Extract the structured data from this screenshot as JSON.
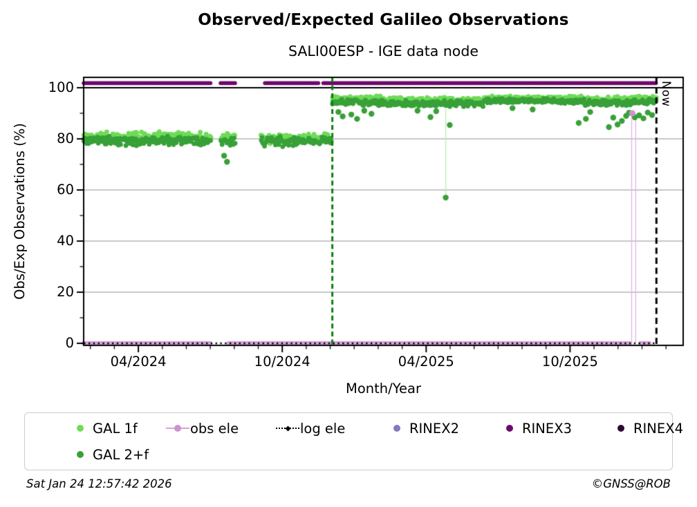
{
  "chart_data": {
    "type": "scatter",
    "title": "Observed/Expected Galileo Observations",
    "subtitle": "SALI00ESP - IGE data node",
    "xlabel": "Month/Year",
    "ylabel": "Obs/Exp Observations (%)",
    "xlim": [
      2024.06,
      2026.143
    ],
    "ylim": [
      -0.81,
      104.05
    ],
    "x_major_ticks": [
      {
        "value": 2024.25,
        "label": "04/2024"
      },
      {
        "value": 2024.75,
        "label": "10/2024"
      },
      {
        "value": 2025.25,
        "label": "04/2025"
      },
      {
        "value": 2025.75,
        "label": "10/2025"
      }
    ],
    "x_minor_tick_step_months": 1,
    "y_major_ticks": [
      {
        "value": 0,
        "label": "0"
      },
      {
        "value": 20,
        "label": "20"
      },
      {
        "value": 40,
        "label": "40"
      },
      {
        "value": 60,
        "label": "60"
      },
      {
        "value": 80,
        "label": "80"
      },
      {
        "value": 100,
        "label": "100"
      }
    ],
    "y_minor_ticks": [
      10,
      30,
      50,
      70,
      90
    ],
    "grid_y_values": [
      20,
      40,
      60,
      80
    ],
    "grid_color": "#b4b4b4",
    "hline_100": {
      "value": 100,
      "color": "#000000"
    },
    "event_line": {
      "x": 2024.924,
      "color": "#0f7d0f",
      "style": "dashed"
    },
    "now_line": {
      "x": 2026.05,
      "label": "Now",
      "color": "#000000",
      "style": "dashed"
    },
    "series": [
      {
        "name": "GAL 1f",
        "color": "#6fdb58",
        "marker_radius": 3.4,
        "bands": [
          {
            "x_start": 2024.0604,
            "x_end": 2024.504,
            "base": 80.8,
            "jitter": 2.2
          },
          {
            "x_start": 2024.536,
            "x_end": 2024.586,
            "base": 80.4,
            "jitter": 1.8
          },
          {
            "x_start": 2024.677,
            "x_end": 2024.921,
            "base": 80.2,
            "jitter": 2.2
          },
          {
            "x_start": 2024.924,
            "x_end": 2025.1,
            "base": 95.7,
            "jitter": 1.2
          },
          {
            "x_start": 2025.1,
            "x_end": 2025.45,
            "base": 95.2,
            "jitter": 1.2
          },
          {
            "x_start": 2025.45,
            "x_end": 2025.8,
            "base": 96.0,
            "jitter": 1.0
          },
          {
            "x_start": 2025.8,
            "x_end": 2025.97,
            "base": 95.4,
            "jitter": 1.2
          },
          {
            "x_start": 2025.97,
            "x_end": 2026.05,
            "base": 95.8,
            "jitter": 1.1
          }
        ],
        "outliers": [],
        "drop_lines": [
          {
            "x": 2025.318,
            "v_from": 57.0,
            "v_to": 93.5
          }
        ]
      },
      {
        "name": "GAL 2+f",
        "color": "#38a038",
        "marker_radius": 3.4,
        "bands": [
          {
            "x_start": 2024.0604,
            "x_end": 2024.504,
            "base": 79.2,
            "jitter": 2.1
          },
          {
            "x_start": 2024.536,
            "x_end": 2024.586,
            "base": 79.0,
            "jitter": 1.7
          },
          {
            "x_start": 2024.677,
            "x_end": 2024.921,
            "base": 78.9,
            "jitter": 2.1
          },
          {
            "x_start": 2024.924,
            "x_end": 2025.1,
            "base": 94.3,
            "jitter": 1.5
          },
          {
            "x_start": 2025.1,
            "x_end": 2025.45,
            "base": 93.8,
            "jitter": 1.4
          },
          {
            "x_start": 2025.45,
            "x_end": 2025.8,
            "base": 94.8,
            "jitter": 1.1
          },
          {
            "x_start": 2025.8,
            "x_end": 2025.97,
            "base": 94.0,
            "jitter": 1.4
          },
          {
            "x_start": 2025.97,
            "x_end": 2026.05,
            "base": 94.6,
            "jitter": 1.2
          }
        ],
        "outliers": [
          [
            2024.548,
            73.4
          ],
          [
            2024.558,
            71.0
          ],
          [
            2024.945,
            90.5
          ],
          [
            2024.96,
            88.8
          ],
          [
            2024.99,
            89.5
          ],
          [
            2025.01,
            87.8
          ],
          [
            2025.035,
            91.0
          ],
          [
            2025.06,
            89.8
          ],
          [
            2025.22,
            91.0
          ],
          [
            2025.265,
            88.5
          ],
          [
            2025.285,
            90.8
          ],
          [
            2025.318,
            57.0
          ],
          [
            2025.332,
            85.4
          ],
          [
            2025.55,
            92.0
          ],
          [
            2025.62,
            91.5
          ],
          [
            2025.78,
            86.2
          ],
          [
            2025.805,
            87.8
          ],
          [
            2025.82,
            90.5
          ],
          [
            2025.885,
            84.6
          ],
          [
            2025.9,
            88.3
          ],
          [
            2025.915,
            85.6
          ],
          [
            2025.93,
            87.0
          ],
          [
            2025.945,
            89.0
          ],
          [
            2025.955,
            90.2
          ],
          [
            2025.975,
            88.4
          ],
          [
            2025.99,
            89.2
          ],
          [
            2026.005,
            88.0
          ],
          [
            2026.02,
            90.3
          ],
          [
            2026.035,
            89.3
          ]
        ],
        "drop_lines": []
      }
    ],
    "obs_ele": {
      "name": "obs ele",
      "color": "#d5a3d8",
      "marker_color": "#cb93d0",
      "value": 0,
      "segments": [
        [
          2024.0604,
          2024.504
        ],
        [
          2024.564,
          2025.962
        ],
        [
          2025.995,
          2026.03
        ]
      ],
      "drop_lines": [
        {
          "x": 2025.964,
          "v_from": 0,
          "v_to": 90
        },
        {
          "x": 2025.978,
          "v_from": 0,
          "v_to": 90
        }
      ],
      "markers": [
        [
          2025.966,
          90
        ]
      ]
    },
    "log_ele": {
      "name": "log ele",
      "color": "#000000",
      "value": 0,
      "segments": [
        [
          2024.0604,
          2026.05
        ]
      ]
    },
    "rinex3_band": {
      "name": "RINEX3",
      "color": "#6d0a6d",
      "value": 101.8,
      "segments": [
        [
          2024.0604,
          2024.504
        ],
        [
          2024.536,
          2024.588
        ],
        [
          2024.69,
          2024.876
        ],
        [
          2024.893,
          2026.05
        ]
      ]
    },
    "legend": {
      "rows": [
        [
          {
            "label": "GAL 1f",
            "marker": "dot",
            "color": "#6fdb58"
          },
          {
            "label": "obs ele",
            "marker": "line-dot",
            "color": "#d5a3d8",
            "dot_color": "#cb93d0"
          },
          {
            "label": "log ele",
            "marker": "dotted-line",
            "color": "#000000"
          },
          {
            "label": "RINEX2",
            "marker": "dot",
            "color": "#8279be"
          },
          {
            "label": "RINEX3",
            "marker": "dot",
            "color": "#6d0a6d"
          },
          {
            "label": "RINEX4",
            "marker": "dot",
            "color": "#2d0b30"
          }
        ],
        [
          {
            "label": "GAL 2+f",
            "marker": "dot",
            "color": "#38a038"
          }
        ]
      ]
    }
  },
  "footer": {
    "timestamp": "Sat Jan 24 12:57:42 2026",
    "copyright": "©GNSS@ROB"
  }
}
